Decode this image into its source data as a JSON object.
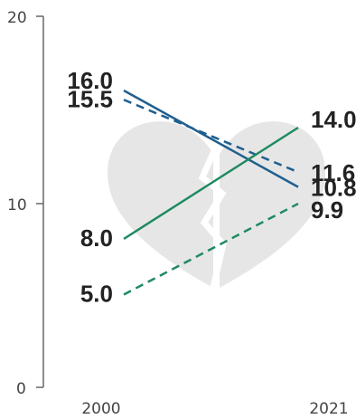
{
  "chart_data": {
    "type": "line",
    "x": [
      2000,
      2021
    ],
    "x_tick_labels": [
      "2000",
      "2021"
    ],
    "y_ticks": [
      0,
      10,
      20
    ],
    "y_tick_labels": [
      "0",
      "10",
      "20"
    ],
    "ylim": [
      0,
      20
    ],
    "grid": false,
    "series": [
      {
        "color": "#1e5f8f",
        "dashed": false,
        "values": [
          16.0,
          10.8
        ],
        "labels": [
          "16.0",
          "10.8"
        ]
      },
      {
        "color": "#1e5f8f",
        "dashed": true,
        "values": [
          15.5,
          11.6
        ],
        "labels": [
          "15.5",
          "11.6"
        ]
      },
      {
        "color": "#1f8a60",
        "dashed": false,
        "values": [
          8.0,
          14.0
        ],
        "labels": [
          "8.0",
          "14.0"
        ]
      },
      {
        "color": "#1f8a60",
        "dashed": true,
        "values": [
          5.0,
          9.9
        ],
        "labels": [
          "5.0",
          "9.9"
        ]
      }
    ],
    "background_icon": "broken-heart-icon",
    "icon_color": "#e6e6e6",
    "axis_color": "#666666"
  }
}
